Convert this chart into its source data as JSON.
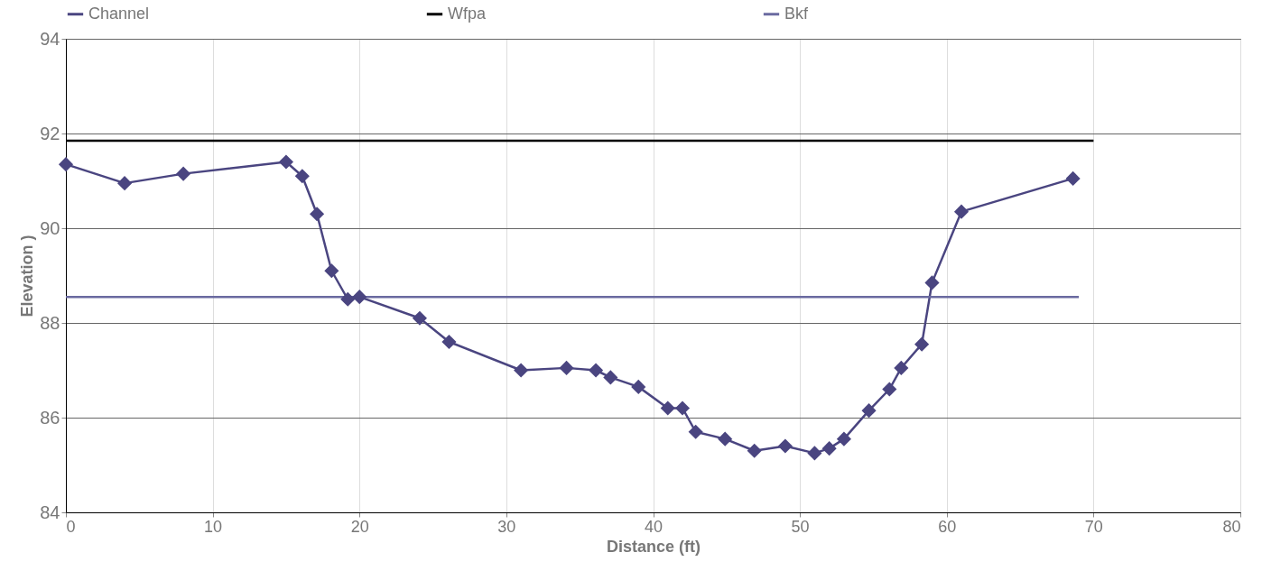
{
  "chart_data": {
    "type": "line",
    "xlabel": "Distance (ft)",
    "ylabel": "Elevation )",
    "xlim": [
      0,
      80
    ],
    "ylim": [
      84,
      94
    ],
    "xticks": [
      0,
      10,
      20,
      30,
      40,
      50,
      60,
      70,
      80
    ],
    "yticks": [
      84,
      86,
      88,
      90,
      92,
      94
    ],
    "grid": true,
    "legend": "top",
    "line_style": "solid",
    "series": [
      {
        "name": "Channel",
        "color": "#4a4580",
        "marker": "diamond",
        "x": [
          0,
          4,
          8,
          15,
          16.1,
          17.1,
          18.1,
          19.2,
          20,
          24.1,
          26.1,
          31,
          34.1,
          36.1,
          37.1,
          39,
          41,
          42,
          42.9,
          44.9,
          46.9,
          49,
          51,
          52,
          53,
          54.7,
          56.1,
          56.9,
          58.3,
          59,
          61,
          68.6
        ],
        "values": [
          91.35,
          90.95,
          91.15,
          91.4,
          91.1,
          90.3,
          89.1,
          88.5,
          88.55,
          88.1,
          87.6,
          87.0,
          87.05,
          87.0,
          86.85,
          86.65,
          86.2,
          86.2,
          85.7,
          85.55,
          85.3,
          85.4,
          85.25,
          85.35,
          85.55,
          86.15,
          86.6,
          87.05,
          87.55,
          88.85,
          90.35,
          91.05
        ]
      },
      {
        "name": "Wfpa",
        "color": "#000000",
        "marker": "none",
        "x": [
          0,
          70
        ],
        "values": [
          91.85,
          91.85
        ]
      },
      {
        "name": "Bkf",
        "color": "#6a6aa0",
        "marker": "none",
        "x": [
          0,
          69
        ],
        "values": [
          88.55,
          88.55
        ]
      }
    ]
  }
}
